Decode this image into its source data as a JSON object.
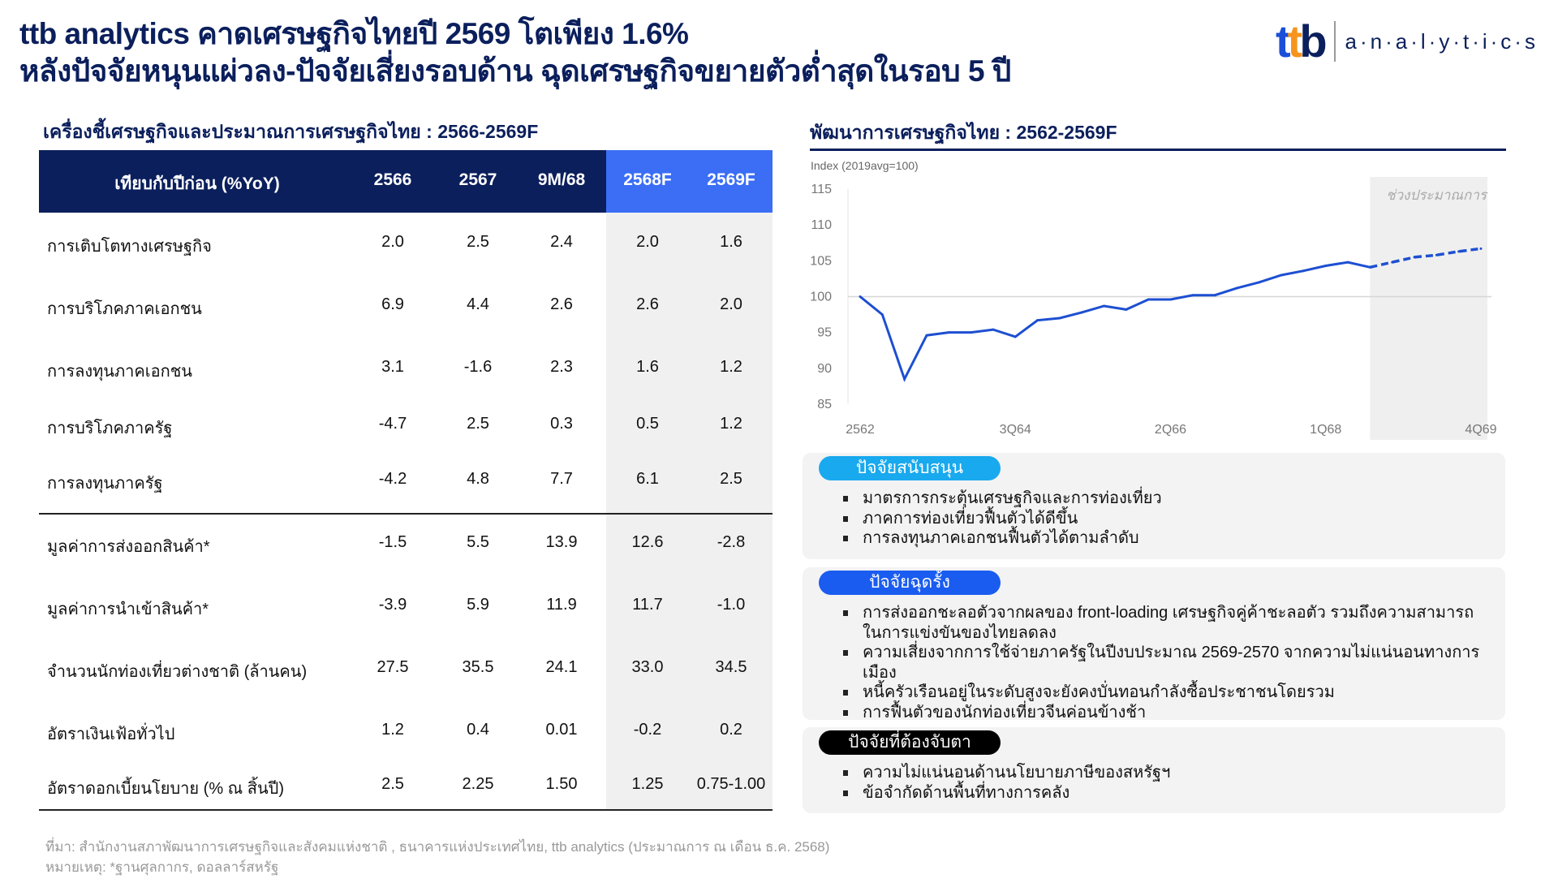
{
  "header": {
    "title_line1": "ttb analytics คาดเศรษฐกิจไทยปี 2569 โตเพียง 1.6%",
    "title_line2": "หลังปัจจัยหนุนแผ่วลง-ปัจจัยเสี่ยงรอบด้าน ฉุดเศรษฐกิจขยายตัวต่ำสุดในรอบ 5 ปี",
    "logo": {
      "mark": "ttb",
      "text": "a·n·a·l·y·t·i·c·s"
    }
  },
  "table": {
    "title": "เครื่องชี้เศรษฐกิจและประมาณการเศรษฐกิจไทย : 2566-2569F",
    "headers": [
      "เทียบกับปีก่อน (%YoY)",
      "2566",
      "2567",
      "9M/68",
      "2568F",
      "2569F"
    ],
    "rows": [
      {
        "label": "การเติบโตทางเศรษฐกิจ",
        "values": [
          "2.0",
          "2.5",
          "2.4",
          "2.0",
          "1.6"
        ]
      },
      {
        "label": "การบริโภคภาคเอกชน",
        "values": [
          "6.9",
          "4.4",
          "2.6",
          "2.6",
          "2.0"
        ]
      },
      {
        "label": "การลงทุนภาคเอกชน",
        "values": [
          "3.1",
          "-1.6",
          "2.3",
          "1.6",
          "1.2"
        ]
      },
      {
        "label": "การบริโภคภาครัฐ",
        "values": [
          "-4.7",
          "2.5",
          "0.3",
          "0.5",
          "1.2"
        ]
      },
      {
        "label": "การลงทุนภาครัฐ",
        "values": [
          "-4.2",
          "4.8",
          "7.7",
          "6.1",
          "2.5"
        ]
      },
      {
        "label": "มูลค่าการส่งออกสินค้า*",
        "values": [
          "-1.5",
          "5.5",
          "13.9",
          "12.6",
          "-2.8"
        ]
      },
      {
        "label": "มูลค่าการนำเข้าสินค้า*",
        "values": [
          "-3.9",
          "5.9",
          "11.9",
          "11.7",
          "-1.0"
        ]
      },
      {
        "label": "จำนวนนักท่องเที่ยวต่างชาติ (ล้านคน)",
        "values": [
          "27.5",
          "35.5",
          "24.1",
          "33.0",
          "34.5"
        ]
      },
      {
        "label": "อัตราเงินเฟ้อทั่วไป",
        "values": [
          "1.2",
          "0.4",
          "0.01",
          "-0.2",
          "0.2"
        ]
      },
      {
        "label": "อัตราดอกเบี้ยนโยบาย (% ณ สิ้นปี)",
        "values": [
          "2.5",
          "2.25",
          "1.50",
          "1.25",
          "0.75-1.00"
        ]
      }
    ]
  },
  "chart_data": {
    "type": "line",
    "title": "พัฒนาการเศรษฐกิจไทย : 2562-2569F",
    "ylabel": "Index (2019avg=100)",
    "ylim": [
      85,
      115
    ],
    "yticks": [
      115,
      110,
      105,
      100,
      95,
      90,
      85
    ],
    "xtick_labels": [
      "2562",
      "3Q64",
      "2Q66",
      "1Q68",
      "4Q69"
    ],
    "forecast_label": "ช่วงประมาณการ",
    "reference_line": 100,
    "actual": [
      100.0,
      97.5,
      88.5,
      94.6,
      95.0,
      95.0,
      95.4,
      94.4,
      96.7,
      97.0,
      97.8,
      98.7,
      98.2,
      99.6,
      99.6,
      100.2,
      100.2,
      101.2,
      102.0,
      103.0,
      103.6,
      104.3,
      104.8,
      104.1
    ],
    "forecast": [
      104.1,
      104.8,
      105.5,
      105.8,
      106.3,
      106.7
    ],
    "color": "#1d4fd1"
  },
  "factors": [
    {
      "title": "ปัจจัยสนับสนุน",
      "color": "#19a9ee",
      "items": [
        "มาตรการกระตุ้นเศรษฐกิจและการท่องเที่ยว",
        "ภาคการท่องเที่ยวฟื้นตัวได้ดีขึ้น",
        "การลงทุนภาคเอกชนฟื้นตัวได้ตามลำดับ"
      ]
    },
    {
      "title": "ปัจจัยฉุดรั้ง",
      "color": "#1a5cf0",
      "items": [
        "การส่งออกชะลอตัวจากผลของ front-loading เศรษฐกิจคู่ค้าชะลอตัว รวมถึงความสามารถในการแข่งขันของไทยลดลง",
        "ความเสี่ยงจากการใช้จ่ายภาครัฐในปีงบประมาณ 2569-2570 จากความไม่แน่นอนทางการเมือง",
        "หนี้ครัวเรือนอยู่ในระดับสูงจะยังคงบั่นทอนกำลังซื้อประชาชนโดยรวม",
        "การฟื้นตัวของนักท่องเที่ยวจีนค่อนข้างช้า"
      ]
    },
    {
      "title": "ปัจจัยที่ต้องจับตา",
      "color": "#000000",
      "items": [
        "ความไม่แน่นอนด้านนโยบายภาษีของสหรัฐฯ",
        "ข้อจำกัดด้านพื้นที่ทางการคลัง"
      ]
    }
  ],
  "footer": {
    "source": "ที่มา: สำนักงานสภาพัฒนาการเศรษฐกิจและสังคมแห่งชาติ , ธนาคารแห่งประเทศไทย, ttb analytics (ประมาณการ ณ เดือน ธ.ค. 2568)",
    "note": "หมายเหตุ: *ฐานศุลกากร, ดอลลาร์สหรัฐ"
  }
}
